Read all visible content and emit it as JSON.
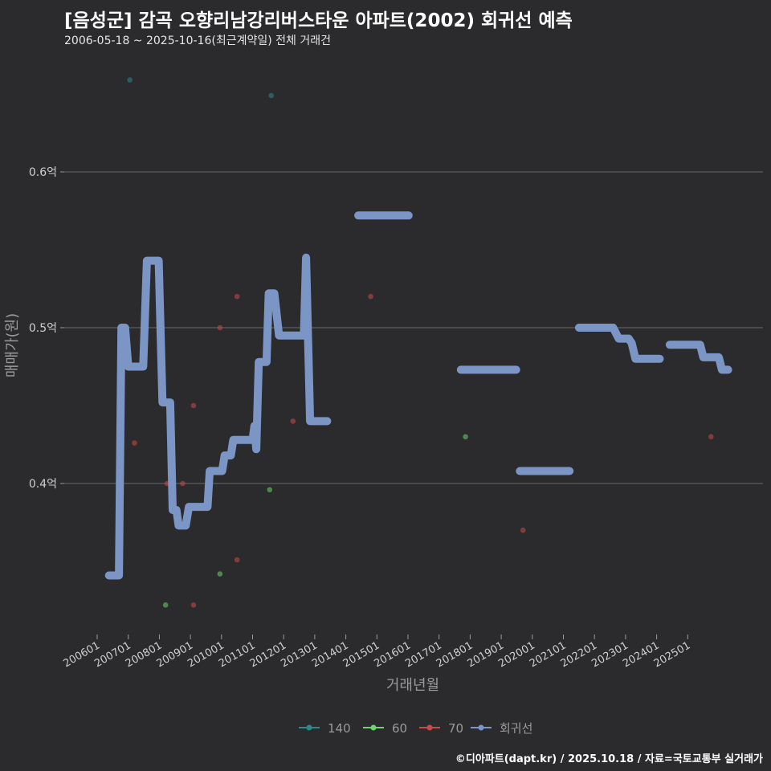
{
  "chart_data": {
    "type": "scatter",
    "title": "[음성군] 감곡 오향리남강리버스타운 아파트(2002) 회귀선 예측",
    "subtitle": "2006-05-18 ~ 2025-10-16(최근계약일) 전체 거래건",
    "xlabel": "거래년월",
    "ylabel": "매매가(원)",
    "caption": "©디아파트(dapt.kr) / 2025.10.18 / 자료=국토교통부 실거래가",
    "ylim": [
      0.3,
      0.7
    ],
    "y_ticks": [
      {
        "value": 0.4,
        "label": "0.4억"
      },
      {
        "value": 0.5,
        "label": "0.5억"
      },
      {
        "value": 0.6,
        "label": "0.6억"
      }
    ],
    "x_ticks": [
      "200601",
      "200701",
      "200801",
      "200901",
      "201001",
      "201101",
      "201201",
      "201301",
      "201401",
      "201501",
      "201601",
      "201701",
      "201801",
      "201901",
      "202001",
      "202101",
      "202201",
      "202301",
      "202401",
      "202501"
    ],
    "legend": [
      {
        "name": "140",
        "color": "#2a8a8c"
      },
      {
        "name": "60",
        "color": "#6fd46f"
      },
      {
        "name": "70",
        "color": "#c94a4a"
      },
      {
        "name": "회귀선",
        "color": "#7b96c4"
      }
    ],
    "scatter_series": [
      {
        "name": "140",
        "color": "#2a8a8c",
        "points": [
          [
            2007.05,
            0.659
          ],
          [
            2011.6,
            0.649
          ]
        ]
      },
      {
        "name": "60",
        "color": "#6fd46f",
        "points": [
          [
            2008.2,
            0.322
          ],
          [
            2009.95,
            0.342
          ],
          [
            2011.55,
            0.396
          ],
          [
            2017.85,
            0.43
          ]
        ]
      },
      {
        "name": "70",
        "color": "#c94a4a",
        "points": [
          [
            2007.2,
            0.426
          ],
          [
            2008.25,
            0.4
          ],
          [
            2008.75,
            0.4
          ],
          [
            2009.1,
            0.45
          ],
          [
            2009.1,
            0.322
          ],
          [
            2009.95,
            0.5
          ],
          [
            2010.5,
            0.52
          ],
          [
            2010.5,
            0.351
          ],
          [
            2012.3,
            0.44
          ],
          [
            2014.8,
            0.52
          ],
          [
            2019.7,
            0.37
          ],
          [
            2025.75,
            0.43
          ]
        ]
      }
    ],
    "regression": {
      "name": "회귀선",
      "color": "#7b96c4",
      "segments": [
        [
          [
            2006.38,
            0.341
          ],
          [
            2006.7,
            0.341
          ],
          [
            2006.78,
            0.5
          ],
          [
            2006.9,
            0.5
          ],
          [
            2007.0,
            0.475
          ],
          [
            2007.48,
            0.475
          ],
          [
            2007.6,
            0.543
          ],
          [
            2007.98,
            0.543
          ],
          [
            2008.1,
            0.452
          ],
          [
            2008.35,
            0.452
          ],
          [
            2008.43,
            0.383
          ],
          [
            2008.55,
            0.383
          ],
          [
            2008.62,
            0.373
          ],
          [
            2008.85,
            0.373
          ],
          [
            2008.95,
            0.385
          ],
          [
            2009.55,
            0.385
          ],
          [
            2009.62,
            0.408
          ],
          [
            2010.02,
            0.408
          ],
          [
            2010.1,
            0.418
          ],
          [
            2010.3,
            0.418
          ],
          [
            2010.38,
            0.428
          ],
          [
            2011.0,
            0.428
          ],
          [
            2011.06,
            0.437
          ],
          [
            2011.12,
            0.422
          ],
          [
            2011.2,
            0.478
          ],
          [
            2011.45,
            0.478
          ],
          [
            2011.52,
            0.522
          ],
          [
            2011.7,
            0.522
          ],
          [
            2011.85,
            0.495
          ],
          [
            2012.65,
            0.495
          ],
          [
            2012.72,
            0.545
          ],
          [
            2012.85,
            0.44
          ],
          [
            2013.4,
            0.44
          ]
        ],
        [
          [
            2014.4,
            0.572
          ],
          [
            2016.02,
            0.572
          ]
        ],
        [
          [
            2017.7,
            0.473
          ],
          [
            2019.48,
            0.473
          ]
        ],
        [
          [
            2019.6,
            0.408
          ],
          [
            2021.2,
            0.408
          ]
        ],
        [
          [
            2021.5,
            0.5
          ],
          [
            2022.6,
            0.5
          ],
          [
            2022.78,
            0.493
          ],
          [
            2023.1,
            0.493
          ],
          [
            2023.2,
            0.49
          ],
          [
            2023.32,
            0.48
          ],
          [
            2024.1,
            0.48
          ]
        ],
        [
          [
            2024.42,
            0.489
          ],
          [
            2025.4,
            0.489
          ],
          [
            2025.5,
            0.481
          ],
          [
            2026.0,
            0.481
          ],
          [
            2026.1,
            0.473
          ],
          [
            2026.3,
            0.473
          ]
        ]
      ]
    }
  }
}
